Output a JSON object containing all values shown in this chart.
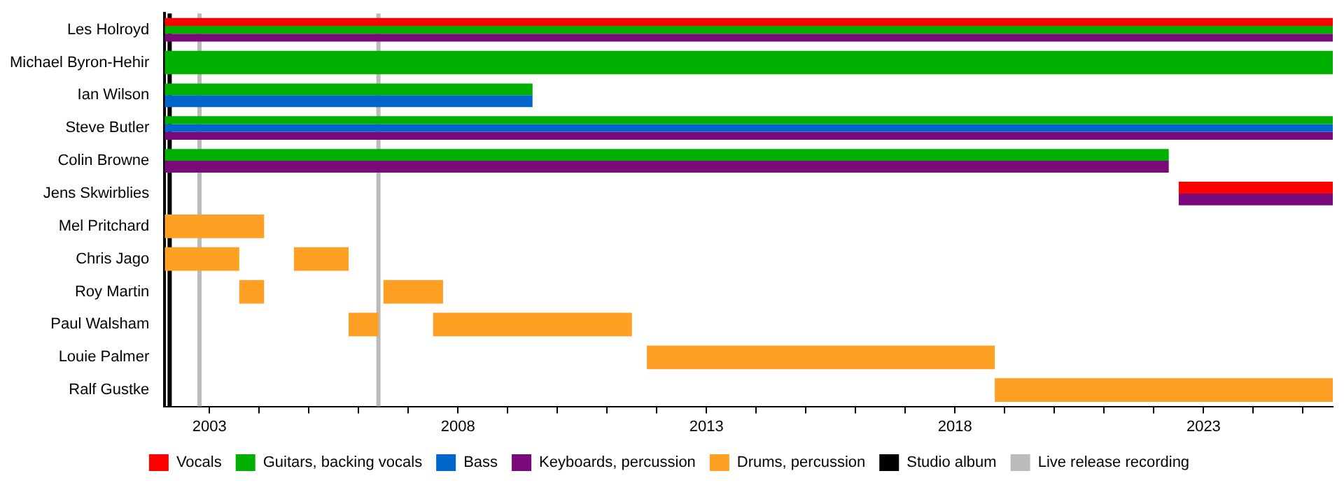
{
  "chart_data": {
    "type": "bar",
    "orientation": "horizontal",
    "categories": [
      "Les Holroyd",
      "Michael Byron-Hehir",
      "Ian Wilson",
      "Steve Butler",
      "Colin Browne",
      "Jens Skwirblies",
      "Mel Pritchard",
      "Chris Jago",
      "Roy Martin",
      "Paul Walsham",
      "Louie Palmer",
      "Ralf Gustke"
    ],
    "series": [
      {
        "name": "Vocals",
        "color": "#ff0000",
        "base": [
          2002.1,
          null,
          null,
          null,
          null,
          2022.5,
          null,
          null,
          null,
          null,
          null,
          null
        ],
        "values": [
          23.5,
          null,
          null,
          null,
          null,
          3.1,
          null,
          null,
          null,
          null,
          null,
          null
        ]
      },
      {
        "name": "Guitars, backing vocals",
        "color": "#00b000",
        "base": [
          2002.1,
          2002.1,
          2002.1,
          2002.1,
          2002.1,
          null,
          null,
          null,
          null,
          null,
          null,
          null
        ],
        "values": [
          23.5,
          23.5,
          7.4,
          23.5,
          20.2,
          null,
          null,
          null,
          null,
          null,
          null,
          null
        ]
      },
      {
        "name": "Bass",
        "color": "#0066cc",
        "base": [
          null,
          null,
          2002.1,
          2002.1,
          null,
          null,
          null,
          null,
          null,
          null,
          null,
          null
        ],
        "values": [
          null,
          null,
          7.4,
          23.5,
          null,
          null,
          null,
          null,
          null,
          null,
          null,
          null
        ]
      },
      {
        "name": "Keyboards, percussion",
        "color": "#7a0a7a",
        "base": [
          2002.1,
          null,
          null,
          2002.1,
          2002.1,
          2022.5,
          null,
          null,
          null,
          null,
          null,
          null
        ],
        "values": [
          23.5,
          null,
          null,
          23.5,
          20.2,
          3.1,
          null,
          null,
          null,
          null,
          null,
          null
        ]
      },
      {
        "name": "Drums, percussion",
        "color": "#ffa024",
        "base": [
          null,
          null,
          null,
          null,
          null,
          null,
          2002.1,
          2002.1,
          2003.6,
          2005.8,
          2011.8,
          2018.8
        ],
        "values": [
          null,
          null,
          null,
          null,
          null,
          null,
          2.0,
          1.5,
          0.5,
          0.6,
          7.0,
          6.8
        ]
      },
      {
        "color": "#ffa024",
        "base": [
          null,
          null,
          null,
          null,
          null,
          null,
          null,
          2004.7,
          2006.5,
          2007.5,
          null,
          null
        ],
        "values": [
          null,
          null,
          null,
          null,
          null,
          null,
          null,
          1.1,
          1.2,
          4.0,
          null,
          null
        ]
      }
    ],
    "ref_lines": [
      {
        "axis": "x",
        "value": 2002.2,
        "label": "Studio album",
        "color": "#000000"
      },
      {
        "axis": "x",
        "value": 2002.8,
        "label": "Live release recording",
        "color": "#bbbbbb"
      },
      {
        "axis": "x",
        "value": 2006.4,
        "color": "#bbbbbb"
      }
    ],
    "xlim": [
      2002.1,
      2025.6
    ],
    "xticks": [
      2003,
      {
        "value": 2004,
        "label": null
      },
      {
        "value": 2005,
        "label": null
      },
      {
        "value": 2006,
        "label": null
      },
      {
        "value": 2007,
        "label": null
      },
      2008,
      {
        "value": 2009,
        "label": null
      },
      {
        "value": 2010,
        "label": null
      },
      {
        "value": 2011,
        "label": null
      },
      {
        "value": 2012,
        "label": null
      },
      2013,
      {
        "value": 2014,
        "label": null
      },
      {
        "value": 2015,
        "label": null
      },
      {
        "value": 2016,
        "label": null
      },
      {
        "value": 2017,
        "label": null
      },
      2018,
      {
        "value": 2019,
        "label": null
      },
      {
        "value": 2020,
        "label": null
      },
      {
        "value": 2021,
        "label": null
      },
      {
        "value": 2022,
        "label": null
      },
      2023,
      {
        "value": 2024,
        "label": null
      },
      {
        "value": 2025,
        "label": null
      }
    ],
    "grid": false,
    "legend": "bottom"
  }
}
